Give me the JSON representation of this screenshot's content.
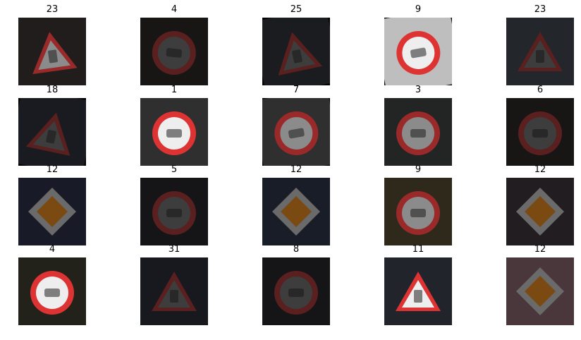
{
  "images": [
    {
      "label": "23",
      "sign": "triangle",
      "bg": "#2a2424",
      "brightness": "medium",
      "rotate": -8
    },
    {
      "label": "4",
      "sign": "circle",
      "bg": "#1e1a1a",
      "brightness": "dark",
      "rotate": 6
    },
    {
      "label": "25",
      "sign": "triangle",
      "bg": "#202326",
      "brightness": "dark",
      "rotate": -12
    },
    {
      "label": "9",
      "sign": "circle",
      "bg": "#e8e8e8",
      "brightness": "bright",
      "rotate": -10
    },
    {
      "label": "23",
      "sign": "triangle",
      "bg": "#2b3035",
      "brightness": "dark",
      "rotate": 0
    },
    {
      "label": "18",
      "sign": "triangle",
      "bg": "#202228",
      "brightness": "dark",
      "rotate": 12
    },
    {
      "label": "1",
      "sign": "circle",
      "bg": "#3a3a3a",
      "brightness": "bright",
      "rotate": 0
    },
    {
      "label": "7",
      "sign": "circle",
      "bg": "#3a3a3a",
      "brightness": "medium",
      "rotate": -10
    },
    {
      "label": "3",
      "sign": "circle",
      "bg": "#2a2e2b",
      "brightness": "medium",
      "rotate": 0
    },
    {
      "label": "6",
      "sign": "circle",
      "bg": "#1e1a1a",
      "brightness": "dark",
      "rotate": 0
    },
    {
      "label": "12",
      "sign": "diamond",
      "bg": "#1e2030",
      "brightness": "medium",
      "rotate": 0
    },
    {
      "label": "5",
      "sign": "circle",
      "bg": "#1a1a1e",
      "brightness": "dark",
      "rotate": 0
    },
    {
      "label": "12",
      "sign": "diamond",
      "bg": "#1f2430",
      "brightness": "medium",
      "rotate": 0
    },
    {
      "label": "9",
      "sign": "circle",
      "bg": "#3a3322",
      "brightness": "medium",
      "rotate": 0
    },
    {
      "label": "12",
      "sign": "diamond",
      "bg": "#2a2428",
      "brightness": "medium",
      "rotate": 0
    },
    {
      "label": "4",
      "sign": "circle",
      "bg": "#2a2a22",
      "brightness": "bright",
      "rotate": 0
    },
    {
      "label": "31",
      "sign": "triangle",
      "bg": "#1e1e26",
      "brightness": "dark",
      "rotate": 0
    },
    {
      "label": "8",
      "sign": "circle",
      "bg": "#1a1a1e",
      "brightness": "dark",
      "rotate": 0
    },
    {
      "label": "11",
      "sign": "triangle",
      "bg": "#2a2c36",
      "brightness": "bright",
      "rotate": 0
    },
    {
      "label": "12",
      "sign": "diamond",
      "bg": "#5a4448",
      "brightness": "medium",
      "rotate": 0
    }
  ]
}
